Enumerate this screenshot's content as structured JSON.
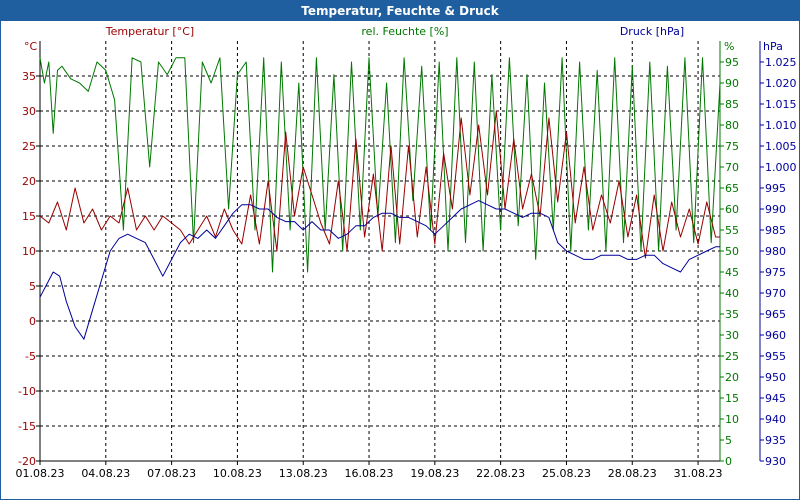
{
  "window": {
    "title": "Temperatur, Feuchte & Druck"
  },
  "colors": {
    "frame": "#1f5f9f",
    "temperature": "#990000",
    "humidity": "#007700",
    "pressure": "#000099",
    "grid": "#000000",
    "axis": "#000000"
  },
  "chart_data": {
    "type": "line",
    "title": "Temperatur, Feuchte & Druck",
    "xlabel": "",
    "grid": true,
    "x_ticks": [
      "01.08.23",
      "04.08.23",
      "07.08.23",
      "10.08.23",
      "13.08.23",
      "16.08.23",
      "19.08.23",
      "22.08.23",
      "25.08.23",
      "28.08.23",
      "31.08.23"
    ],
    "x_range": [
      1,
      32
    ],
    "axes": {
      "temperature": {
        "label": "Temperatur [°C]",
        "unit": "°C",
        "range": [
          -20,
          40
        ],
        "ticks": [
          -20,
          -15,
          -10,
          -5,
          0,
          5,
          10,
          15,
          20,
          25,
          30,
          35
        ]
      },
      "humidity": {
        "label": "rel. Feuchte [%]",
        "unit": "%",
        "range": [
          0,
          100
        ],
        "ticks": [
          0,
          5,
          10,
          15,
          20,
          25,
          30,
          35,
          40,
          45,
          50,
          55,
          60,
          65,
          70,
          75,
          80,
          85,
          90,
          95
        ]
      },
      "pressure": {
        "label": "Druck [hPa]",
        "unit": "hPa",
        "range": [
          930,
          1030
        ],
        "ticks": [
          930,
          935,
          940,
          945,
          950,
          955,
          960,
          965,
          970,
          975,
          980,
          985,
          990,
          995,
          1000,
          1005,
          1010,
          1015,
          1020,
          1025
        ]
      }
    },
    "series": [
      {
        "name": "Temperatur",
        "axis": "temperature",
        "x": [
          1,
          1.4,
          1.8,
          2.2,
          2.6,
          3.0,
          3.4,
          3.8,
          4.2,
          4.6,
          5.0,
          5.4,
          5.8,
          6.2,
          6.6,
          7.0,
          7.4,
          7.8,
          8.2,
          8.6,
          9.0,
          9.4,
          9.8,
          10.2,
          10.6,
          11.0,
          11.4,
          11.8,
          12.2,
          12.6,
          13.0,
          13.4,
          13.8,
          14.2,
          14.6,
          15.0,
          15.4,
          15.8,
          16.2,
          16.6,
          17.0,
          17.4,
          17.8,
          18.2,
          18.6,
          19.0,
          19.4,
          19.8,
          20.2,
          20.6,
          21.0,
          21.4,
          21.8,
          22.2,
          22.6,
          23.0,
          23.4,
          23.8,
          24.2,
          24.6,
          25.0,
          25.4,
          25.8,
          26.2,
          26.6,
          27.0,
          27.4,
          27.8,
          28.2,
          28.6,
          29.0,
          29.4,
          29.8,
          30.2,
          30.6,
          31.0,
          31.4,
          31.8,
          32.0
        ],
        "values": [
          15,
          14,
          17,
          13,
          19,
          14,
          16,
          13,
          15,
          14,
          19,
          13,
          15,
          13,
          15,
          14,
          13,
          11,
          13,
          15,
          12,
          16,
          13,
          11,
          18,
          11,
          20,
          10,
          27,
          15,
          22,
          18,
          14,
          11,
          20,
          10,
          26,
          12,
          21,
          10,
          25,
          11,
          25,
          12,
          22,
          11,
          24,
          16,
          29,
          18,
          28,
          18,
          30,
          16,
          26,
          16,
          21,
          15,
          29,
          17,
          27,
          14,
          22,
          13,
          18,
          14,
          20,
          12,
          18,
          9,
          18,
          10,
          17,
          12,
          16,
          11,
          17,
          12,
          12
        ]
      },
      {
        "name": "rel. Feuchte",
        "axis": "humidity",
        "x": [
          1,
          1.2,
          1.4,
          1.6,
          1.8,
          2.0,
          2.4,
          2.8,
          3.2,
          3.6,
          4.0,
          4.4,
          4.8,
          5.2,
          5.6,
          6.0,
          6.4,
          6.8,
          7.2,
          7.6,
          8.0,
          8.4,
          8.8,
          9.2,
          9.6,
          10.0,
          10.4,
          10.8,
          11.2,
          11.6,
          12.0,
          12.4,
          12.8,
          13.2,
          13.6,
          14.0,
          14.4,
          14.8,
          15.2,
          15.6,
          16.0,
          16.4,
          16.8,
          17.2,
          17.6,
          18.0,
          18.4,
          18.8,
          19.2,
          19.6,
          20.0,
          20.4,
          20.8,
          21.2,
          21.6,
          22.0,
          22.4,
          22.8,
          23.2,
          23.6,
          24.0,
          24.4,
          24.8,
          25.2,
          25.6,
          26.0,
          26.4,
          26.8,
          27.2,
          27.6,
          28.0,
          28.4,
          28.8,
          29.2,
          29.6,
          30.0,
          30.4,
          30.8,
          31.2,
          31.6,
          32.0
        ],
        "values": [
          96,
          90,
          95,
          78,
          93,
          94,
          91,
          90,
          88,
          95,
          93,
          86,
          55,
          96,
          95,
          70,
          95,
          92,
          96,
          96,
          52,
          95,
          90,
          96,
          60,
          92,
          95,
          55,
          96,
          45,
          95,
          55,
          90,
          45,
          96,
          55,
          92,
          50,
          95,
          55,
          96,
          58,
          90,
          52,
          96,
          62,
          94,
          55,
          95,
          50,
          96,
          52,
          95,
          50,
          92,
          55,
          96,
          56,
          92,
          48,
          90,
          55,
          96,
          50,
          95,
          55,
          93,
          50,
          96,
          52,
          94,
          50,
          95,
          50,
          94,
          55,
          96,
          52,
          96,
          52,
          90
        ]
      },
      {
        "name": "Druck",
        "axis": "pressure",
        "x": [
          1,
          1.3,
          1.6,
          1.9,
          2.2,
          2.6,
          3.0,
          3.4,
          3.8,
          4.2,
          4.6,
          5.0,
          5.4,
          5.8,
          6.2,
          6.6,
          7.0,
          7.4,
          7.8,
          8.2,
          8.6,
          9.0,
          9.4,
          9.8,
          10.2,
          10.6,
          11.0,
          11.4,
          11.8,
          12.2,
          12.6,
          13.0,
          13.4,
          13.8,
          14.2,
          14.6,
          15.0,
          15.4,
          15.8,
          16.2,
          16.6,
          17.0,
          17.4,
          17.8,
          18.2,
          18.6,
          19.0,
          19.4,
          19.8,
          20.2,
          20.6,
          21.0,
          21.4,
          21.8,
          22.2,
          22.6,
          23.0,
          23.4,
          23.8,
          24.2,
          24.6,
          25.0,
          25.4,
          25.8,
          26.2,
          26.6,
          27.0,
          27.4,
          27.8,
          28.2,
          28.6,
          29.0,
          29.4,
          29.8,
          30.2,
          30.6,
          31.0,
          31.4,
          31.8,
          32.0
        ],
        "values": [
          969,
          972,
          975,
          974,
          968,
          962,
          959,
          966,
          973,
          980,
          983,
          984,
          983,
          982,
          978,
          974,
          978,
          982,
          984,
          983,
          985,
          983,
          986,
          989,
          991,
          991,
          990,
          990,
          988,
          987,
          987,
          985,
          987,
          985,
          985,
          983,
          984,
          986,
          986,
          988,
          989,
          989,
          988,
          988,
          987,
          986,
          984,
          986,
          988,
          990,
          991,
          992,
          991,
          990,
          990,
          989,
          988,
          989,
          989,
          988,
          982,
          980,
          979,
          978,
          978,
          979,
          979,
          979,
          978,
          978,
          979,
          979,
          977,
          976,
          975,
          978,
          979,
          980,
          981,
          981
        ]
      }
    ]
  }
}
